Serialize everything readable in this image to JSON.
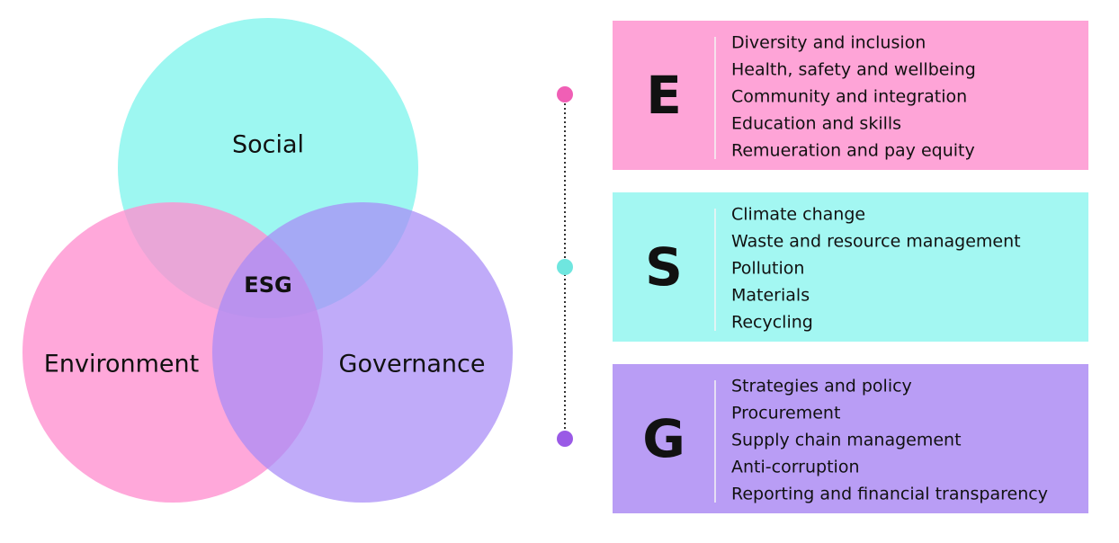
{
  "venn": {
    "top": "Social",
    "left": "Environment",
    "right": "Governance",
    "center": "ESG"
  },
  "panels": [
    {
      "letter": "E",
      "items": [
        "Diversity and inclusion",
        "Health, safety and wellbeing",
        "Community and integration",
        "Education and skills",
        "Remueration and pay equity"
      ]
    },
    {
      "letter": "S",
      "items": [
        "Climate change",
        "Waste and resource management",
        "Pollution",
        "Materials",
        "Recycling"
      ]
    },
    {
      "letter": "G",
      "items": [
        "Strategies and policy",
        "Procurement",
        "Supply chain management",
        "Anti-corruption",
        "Reporting and financial transparency"
      ]
    }
  ]
}
